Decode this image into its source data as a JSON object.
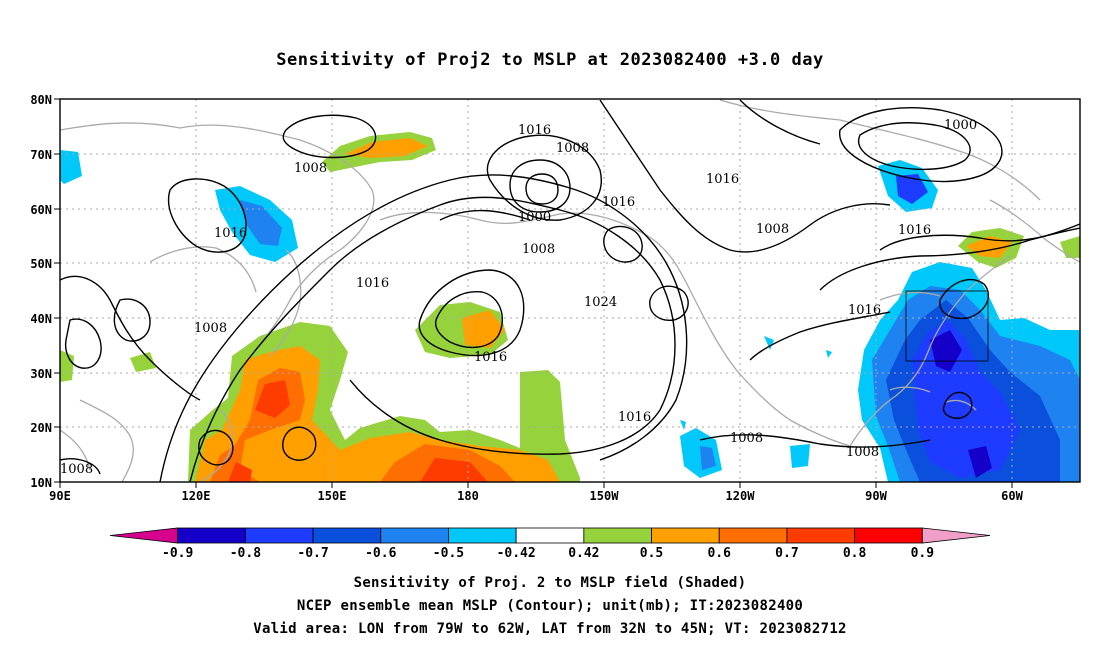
{
  "title": "Sensitivity of Proj2 to MSLP at 2023082400 +3.0 day",
  "lat_labels": [
    "80N",
    "70N",
    "60N",
    "50N",
    "40N",
    "30N",
    "20N",
    "10N"
  ],
  "lon_labels": [
    "90E",
    "120E",
    "150E",
    "180",
    "150W",
    "120W",
    "90W",
    "60W"
  ],
  "contour_labels": [
    {
      "text": "1016"
    },
    {
      "text": "1008"
    },
    {
      "text": "1000"
    },
    {
      "text": "1008"
    },
    {
      "text": "1016"
    },
    {
      "text": "1016"
    },
    {
      "text": "1016"
    },
    {
      "text": "1008"
    },
    {
      "text": "1008"
    },
    {
      "text": "1000"
    },
    {
      "text": "1016"
    },
    {
      "text": "1016"
    },
    {
      "text": "1008"
    },
    {
      "text": "1024"
    },
    {
      "text": "1016"
    },
    {
      "text": "1016"
    },
    {
      "text": "1016"
    },
    {
      "text": "1008"
    },
    {
      "text": "1008"
    },
    {
      "text": "1008"
    }
  ],
  "colorbar": {
    "levels": [
      "-0.9",
      "-0.8",
      "-0.7",
      "-0.6",
      "-0.5",
      "-0.42",
      "0.42",
      "0.5",
      "0.6",
      "0.7",
      "0.8",
      "0.9"
    ],
    "colors": [
      "#d6008f",
      "#1400c8",
      "#1e3cff",
      "#0a50dc",
      "#1e82f0",
      "#00c8fa",
      "#ffffff",
      "#96d23c",
      "#ffa000",
      "#ff6e00",
      "#ff3c00",
      "#ff0000",
      "#f0a0c8"
    ]
  },
  "captions": [
    "Sensitivity of Proj. 2 to MSLP field (Shaded)",
    "NCEP ensemble mean MSLP (Contour); unit(mb); IT:2023082400",
    "Valid area: LON from 79W to 62W, LAT from 32N to 45N; VT: 2023082712"
  ]
}
